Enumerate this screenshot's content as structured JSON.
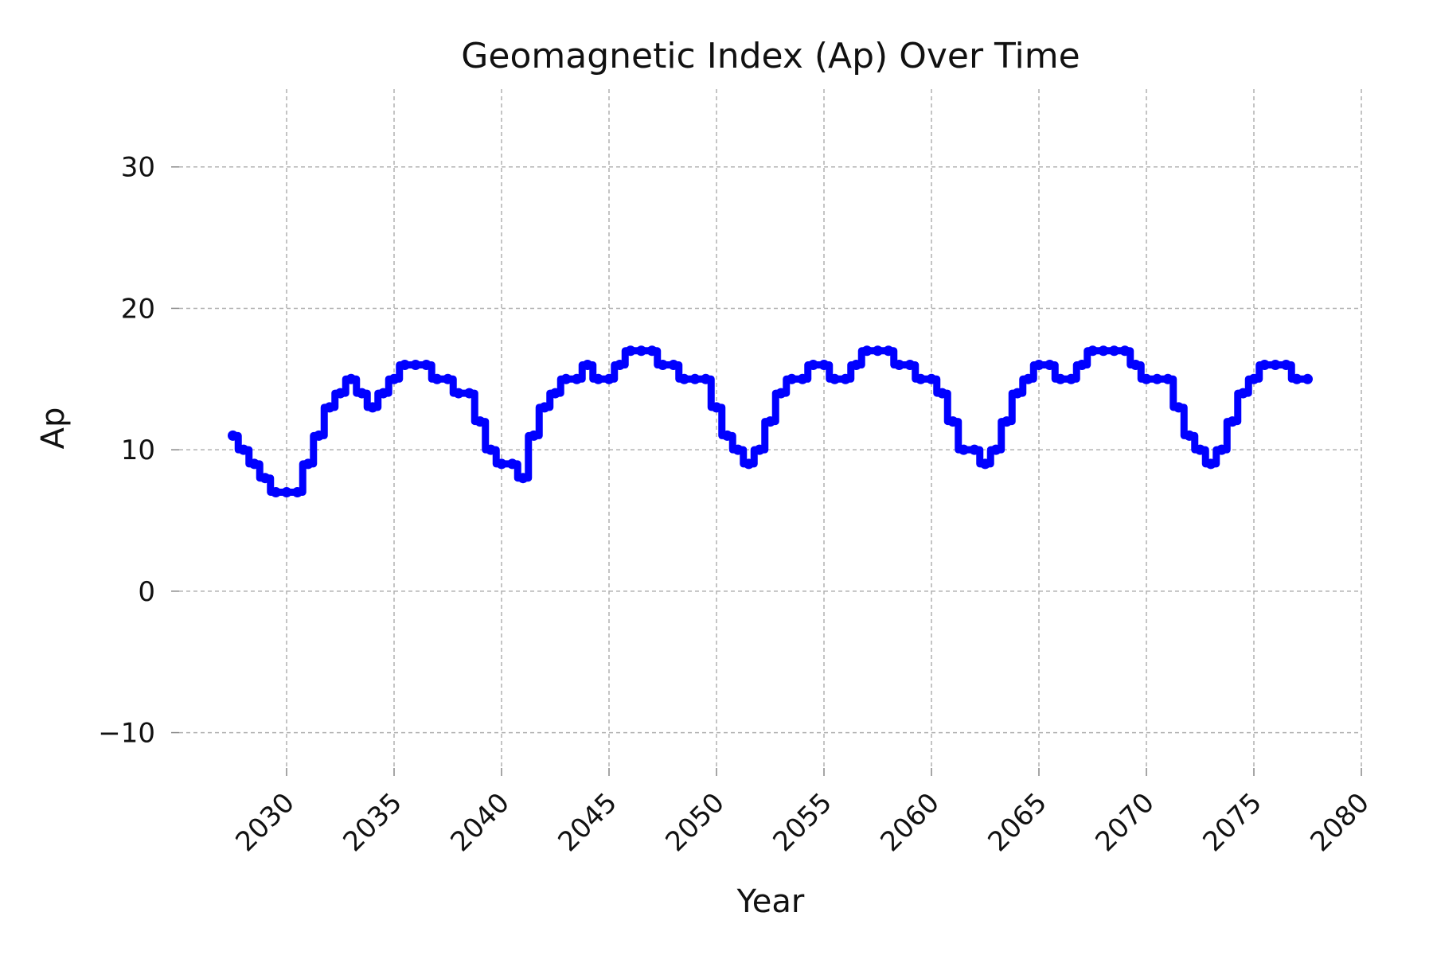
{
  "chart_data": {
    "type": "line",
    "title": "Geomagnetic Index (Ap) Over Time",
    "xlabel": "Year",
    "ylabel": "Ap",
    "xlim": [
      2025,
      2080
    ],
    "ylim": [
      -12.5,
      35.5
    ],
    "xticks": [
      2030,
      2035,
      2040,
      2045,
      2050,
      2055,
      2060,
      2065,
      2070,
      2075,
      2080
    ],
    "yticks": [
      -10,
      0,
      10,
      20,
      30
    ],
    "ytick_labels": [
      "−10",
      "0",
      "10",
      "20",
      "30"
    ],
    "grid": true,
    "color": "#0000ff",
    "series": [
      {
        "x": [
          2027.5,
          2028.0,
          2028.5,
          2029.0,
          2029.5,
          2030.0,
          2030.5,
          2031.0,
          2031.5,
          2032.0,
          2032.5,
          2033.0,
          2033.5,
          2034.0,
          2034.5,
          2035.0,
          2035.5,
          2036.0,
          2036.5,
          2037.0,
          2037.5,
          2038.0,
          2038.5,
          2039.0,
          2039.5,
          2040.0,
          2040.5,
          2041.0,
          2041.5,
          2042.0,
          2042.5,
          2043.0,
          2043.5,
          2044.0,
          2044.5,
          2045.0,
          2045.5,
          2046.0,
          2046.5,
          2047.0,
          2047.5,
          2048.0,
          2048.5,
          2049.0,
          2049.5,
          2050.0,
          2050.5,
          2051.0,
          2051.5,
          2052.0,
          2052.5,
          2053.0,
          2053.5,
          2054.0,
          2054.5,
          2055.0,
          2055.5,
          2056.0,
          2056.5,
          2057.0,
          2057.5,
          2058.0,
          2058.5,
          2059.0,
          2059.5,
          2060.0,
          2060.5,
          2061.0,
          2061.5,
          2062.0,
          2062.5,
          2063.0,
          2063.5,
          2064.0,
          2064.5,
          2065.0,
          2065.5,
          2066.0,
          2066.5,
          2067.0,
          2067.5,
          2068.0,
          2068.5,
          2069.0,
          2069.5,
          2070.0,
          2070.5,
          2071.0,
          2071.5,
          2072.0,
          2072.5,
          2073.0,
          2073.5,
          2074.0,
          2074.5,
          2075.0,
          2075.5,
          2076.0,
          2076.5,
          2077.0,
          2077.5
        ],
        "y": [
          11,
          10,
          9,
          8,
          7,
          7,
          7,
          9,
          11,
          13,
          14,
          15,
          14,
          13,
          14,
          15,
          16,
          16,
          16,
          15,
          15,
          14,
          14,
          12,
          10,
          9,
          9,
          8,
          11,
          13,
          14,
          15,
          15,
          16,
          15,
          15,
          16,
          17,
          17,
          17,
          16,
          16,
          15,
          15,
          15,
          13,
          11,
          10,
          9,
          10,
          12,
          14,
          15,
          15,
          16,
          16,
          15,
          15,
          16,
          17,
          17,
          17,
          16,
          16,
          15,
          15,
          14,
          12,
          10,
          10,
          9,
          10,
          12,
          14,
          15,
          16,
          16,
          15,
          15,
          16,
          17,
          17,
          17,
          17,
          16,
          15,
          15,
          15,
          13,
          11,
          10,
          9,
          10,
          12,
          14,
          15,
          16,
          16,
          16,
          15,
          15
        ]
      }
    ]
  }
}
